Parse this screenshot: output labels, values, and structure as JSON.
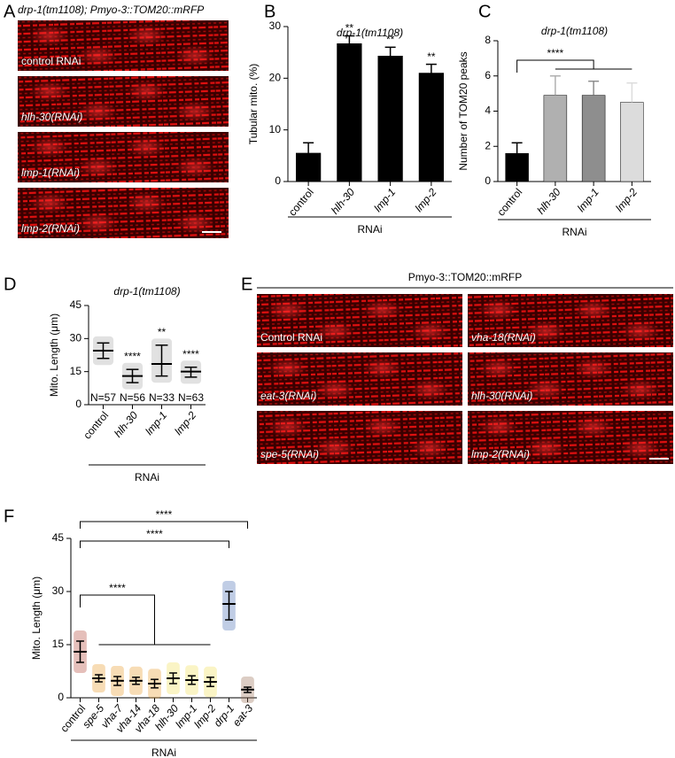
{
  "panel_letters": [
    "A",
    "B",
    "C",
    "D",
    "E",
    "F"
  ],
  "images": [
    {
      "title": "drp-1(tm1108); Pmyo-3::TOM20::mRFP",
      "labels": [
        "control RNAi",
        "hlh-30(RNAi)",
        "lmp-1(RNAi)",
        "lmp-2(RNAi)"
      ]
    },
    {
      "title": "Pmyo-3::TOM20::mRFP",
      "labels": [
        "Control RNAi",
        "vha-18(RNAi)",
        "eat-3(RNAi)",
        "hlh-30(RNAi)",
        "spe-5(RNAi)",
        "lmp-2(RNAi)"
      ]
    }
  ],
  "chart_data": [
    {
      "type": "bar",
      "title": "drp-1(tm1108)",
      "ylabel": "Tubular mito. (%)",
      "xlabel": "RNAi",
      "categories": [
        "control",
        "hlh-30",
        "lmp-1",
        "lmp-2"
      ],
      "values": [
        5.5,
        26.7,
        24.3,
        21
      ],
      "errors": [
        2,
        1.5,
        1.7,
        1.7
      ],
      "colors": [
        "#000000",
        "#000000",
        "#000000",
        "#000000"
      ],
      "significance": [
        null,
        "**",
        "**",
        "**"
      ],
      "ylim": [
        0,
        30
      ],
      "yticks": [
        0,
        10,
        20,
        30
      ]
    },
    {
      "type": "bar",
      "title": "drp-1(tm1108)",
      "ylabel": "Number of TOM20 peaks",
      "xlabel": "RNAi",
      "categories": [
        "control",
        "hlh-30",
        "lmp-1",
        "lmp-2"
      ],
      "values": [
        1.6,
        4.9,
        4.9,
        4.5
      ],
      "errors": [
        0.6,
        1.1,
        0.8,
        1.1
      ],
      "colors": [
        "#000000",
        "#b0b0b0",
        "#8e8e8e",
        "#dcdcdc"
      ],
      "brackets": [
        {
          "label": "****",
          "from": 0,
          "to_range": [
            1,
            3
          ]
        }
      ],
      "ylim": [
        0,
        8
      ],
      "yticks": [
        0,
        2,
        4,
        6,
        8
      ]
    },
    {
      "type": "dot",
      "title": "drp-1(tm1108)",
      "ylabel": "Mito. Length (μm)",
      "xlabel": "RNAi",
      "categories": [
        "control",
        "hlh-30",
        "lmp-1",
        "lmp-2"
      ],
      "values": [
        24.5,
        13,
        18.5,
        15
      ],
      "lower": [
        21,
        10,
        13,
        12.5
      ],
      "upper": [
        28,
        16,
        27,
        17
      ],
      "colors": [
        "#a8a8a8",
        "#a8a8a8",
        "#a8a8a8",
        "#a8a8a8"
      ],
      "significance": [
        null,
        "****",
        "**",
        "****"
      ],
      "n_labels": [
        "N=57",
        "N=56",
        "N=33",
        "N=63"
      ],
      "ylim": [
        0,
        45
      ],
      "yticks": [
        0,
        15,
        30,
        45
      ]
    },
    {
      "type": "dot",
      "ylabel": "Mito. Length (μm)",
      "xlabel": "RNAi",
      "categories": [
        "control",
        "spe-5",
        "vha-7",
        "vha-14",
        "vha-18",
        "hlh-30",
        "lmp-1",
        "lmp-2",
        "drp-1",
        "eat-3"
      ],
      "values": [
        13,
        5.5,
        4.8,
        4.8,
        4,
        5.5,
        5,
        4.5,
        26.5,
        2.3
      ],
      "lower": [
        10,
        4.5,
        3.5,
        3.8,
        2.8,
        4,
        3.8,
        3.2,
        22,
        1.5
      ],
      "upper": [
        16,
        6.5,
        6,
        5.8,
        5.2,
        7,
        6.2,
        5.8,
        30,
        3
      ],
      "colors": [
        "#b5473a",
        "#e89a2c",
        "#e89a2c",
        "#e89a2c",
        "#e89a2c",
        "#f0df5a",
        "#f0df5a",
        "#f0df5a",
        "#4a70b5",
        "#9b6f57"
      ],
      "brackets": [
        {
          "label": "****",
          "from": 0,
          "to_range": [
            1,
            7
          ]
        },
        {
          "label": "****",
          "from": 0,
          "to_range": [
            8,
            8
          ]
        },
        {
          "label": "****",
          "from": 0,
          "to_range": [
            9,
            9
          ]
        }
      ],
      "ylim": [
        0,
        45
      ],
      "yticks": [
        0,
        15,
        30,
        45
      ]
    }
  ]
}
